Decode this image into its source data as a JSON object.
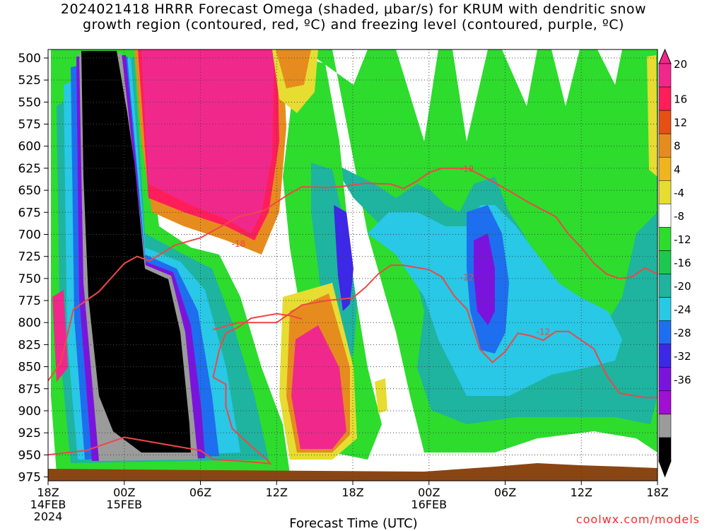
{
  "title": {
    "line1": "2024021418 HRRR Forecast Omega (shaded, μbar/s) for KRUM with dendritic snow",
    "line2": "growth region (contoured, red, ºC) and freezing level (contoured, purple, ºC)"
  },
  "chart_data": {
    "type": "heatmap",
    "ylabel_values": [
      500,
      525,
      550,
      575,
      600,
      625,
      650,
      675,
      700,
      725,
      750,
      775,
      800,
      825,
      850,
      875,
      900,
      925,
      950,
      975
    ],
    "ylim": [
      500,
      985
    ],
    "y_inverted": true,
    "x_ticks": [
      {
        "label": "18Z",
        "sub1": "14FEB",
        "sub2": "2024",
        "hour": 0
      },
      {
        "label": "00Z",
        "sub1": "15FEB",
        "sub2": "",
        "hour": 6
      },
      {
        "label": "06Z",
        "sub1": "",
        "sub2": "",
        "hour": 12
      },
      {
        "label": "12Z",
        "sub1": "",
        "sub2": "",
        "hour": 18
      },
      {
        "label": "18Z",
        "sub1": "",
        "sub2": "",
        "hour": 24
      },
      {
        "label": "00Z",
        "sub1": "16FEB",
        "sub2": "",
        "hour": 30
      },
      {
        "label": "06Z",
        "sub1": "",
        "sub2": "",
        "hour": 36
      },
      {
        "label": "12Z",
        "sub1": "",
        "sub2": "",
        "hour": 42
      },
      {
        "label": "18Z",
        "sub1": "",
        "sub2": "",
        "hour": 48
      }
    ],
    "xlim_hours": [
      0,
      48
    ],
    "xlabel": "Forecast Time (UTC)",
    "grid": true,
    "colorbar": {
      "labels": [
        "20",
        "16",
        "12",
        "8",
        "4",
        "-4",
        "-8",
        "-12",
        "-16",
        "-20",
        "-24",
        "-28",
        "-32",
        "-36"
      ],
      "colors": [
        "#f0288c",
        "#ff1e5a",
        "#e65014",
        "#e68c1e",
        "#f0b41e",
        "#e6dc32",
        "#ffffff",
        "#2ddc2d",
        "#1ec850",
        "#1eb4a0",
        "#28c8e6",
        "#1e6ef0",
        "#3c28e6",
        "#7a14dc",
        "#a00fd2",
        "#9b9b9b",
        "#000000"
      ]
    },
    "contours": {
      "dendritic_snow_red": [
        {
          "label": "-18",
          "points": [
            [
              0,
              866
            ],
            [
              1,
              845
            ],
            [
              2,
              785
            ],
            [
              4,
              765
            ],
            [
              6,
              733
            ],
            [
              7,
              725
            ],
            [
              8,
              730
            ],
            [
              10,
              712
            ],
            [
              12,
              704
            ],
            [
              14,
              688
            ],
            [
              15,
              680
            ],
            [
              17,
              673
            ],
            [
              19,
              654
            ],
            [
              20,
              646
            ],
            [
              22,
              647
            ],
            [
              23,
              646
            ],
            [
              25,
              642
            ],
            [
              27,
              643
            ],
            [
              28,
              648
            ],
            [
              29,
              640
            ],
            [
              30,
              630
            ],
            [
              31,
              625
            ],
            [
              33,
              625
            ],
            [
              34,
              632
            ],
            [
              36,
              648
            ],
            [
              38,
              665
            ],
            [
              40,
              680
            ],
            [
              41,
              700
            ],
            [
              42,
              715
            ],
            [
              43,
              733
            ],
            [
              44,
              745
            ],
            [
              45,
              750
            ],
            [
              46,
              748
            ],
            [
              47,
              738
            ],
            [
              48,
              745
            ]
          ],
          "label_at": [
            15,
            710,
            "-18"
          ],
          "label2_at": [
            33,
            625,
            "-18"
          ]
        },
        {
          "label": "-12",
          "points": [
            [
              13,
              808
            ],
            [
              15,
              800
            ],
            [
              18,
              800
            ],
            [
              19,
              790
            ],
            [
              20,
              780
            ],
            [
              22,
              775
            ],
            [
              24,
              772
            ],
            [
              25,
              760
            ],
            [
              26,
              745
            ],
            [
              27,
              735
            ],
            [
              28,
              735
            ],
            [
              30,
              740
            ],
            [
              31,
              748
            ],
            [
              32,
              770
            ],
            [
              33,
              785
            ],
            [
              34,
              830
            ],
            [
              35,
              845
            ],
            [
              36,
              833
            ],
            [
              37,
              812
            ],
            [
              38,
              815
            ],
            [
              39,
              820
            ],
            [
              40,
              810
            ],
            [
              41,
              810
            ],
            [
              43,
              830
            ],
            [
              44,
              860
            ],
            [
              45,
              880
            ],
            [
              47,
              885
            ],
            [
              48,
              885
            ]
          ],
          "label_at": [
            33,
            748,
            "-12"
          ],
          "label2_at": [
            39,
            810,
            "-12"
          ]
        },
        {
          "label": "",
          "points": [
            [
              13,
              862
            ],
            [
              13.5,
              830
            ],
            [
              14,
              812
            ],
            [
              15,
              805
            ],
            [
              16,
              795
            ],
            [
              18,
              790
            ],
            [
              19,
              792
            ],
            [
              20,
              796
            ]
          ]
        },
        {
          "label": "",
          "points": [
            [
              0,
              950
            ],
            [
              3,
              945
            ],
            [
              6,
              930
            ],
            [
              8,
              935
            ],
            [
              10,
              940
            ],
            [
              12,
              945
            ],
            [
              13,
              955
            ],
            [
              16,
              958
            ],
            [
              17.5,
              960
            ],
            [
              17.2,
              955
            ],
            [
              16,
              940
            ],
            [
              14.5,
              920
            ],
            [
              14,
              895
            ],
            [
              14,
              870
            ],
            [
              13,
              862
            ]
          ]
        }
      ]
    }
  },
  "credit": "coolwx.com/models"
}
